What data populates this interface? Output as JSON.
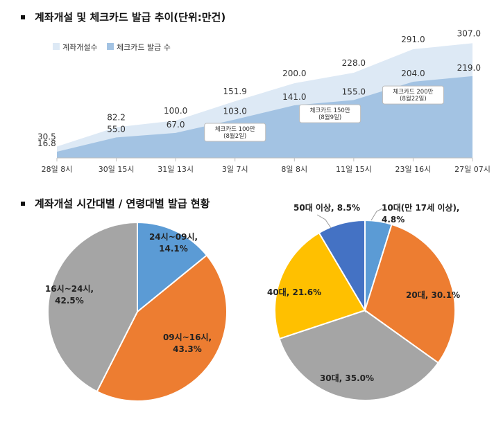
{
  "titles": {
    "top": "계좌개설 및 체크카드 발급 추이(단위:만건)",
    "bottom": "계좌개설 시간대별 / 연령대별 발급 현황"
  },
  "colors": {
    "account_area": "#dde9f5",
    "card_area": "#a3c3e3",
    "axis": "#bfbfbf",
    "time_pie": [
      "#5b9bd5",
      "#ed7d31",
      "#a5a5a5"
    ],
    "age_pie": [
      "#5b9bd5",
      "#ed7d31",
      "#a5a5a5",
      "#ffc000",
      "#4472c4"
    ]
  },
  "chart_data": [
    {
      "type": "area",
      "title": "계좌개설 및 체크카드 발급 추이(단위:만건)",
      "categories": [
        "28일 8시",
        "30일 15시",
        "31일 13시",
        "3일 7시",
        "8일 8시",
        "11일 15시",
        "23일 16시",
        "27일 07시"
      ],
      "series": [
        {
          "name": "계좌개설수",
          "values": [
            30.5,
            82.2,
            100.0,
            151.9,
            200.0,
            228.0,
            291.0,
            307.0
          ],
          "labels": [
            "30.5",
            "82.2",
            "100.0",
            "151.9",
            "200.0",
            "228.0",
            "291.0",
            "307.0"
          ]
        },
        {
          "name": "체크카드 발급 수",
          "values": [
            16.8,
            55.0,
            67.0,
            103.0,
            141.0,
            155.0,
            204.0,
            219.0
          ],
          "labels": [
            "16.8",
            "55.0",
            "67.0",
            "103.0",
            "141.0",
            "155.0",
            "204.0",
            "219.0"
          ]
        }
      ],
      "ylim": [
        0,
        330
      ],
      "grid": false,
      "legend": "top-left",
      "annotations": [
        {
          "lines": [
            "체크카드 100만",
            "(8월2일)"
          ],
          "x_index": 3,
          "value": 100
        },
        {
          "lines": [
            "체크카드 150만",
            "(8월9일)"
          ],
          "x_index": 4.6,
          "value": 150
        },
        {
          "lines": [
            "체크카드 200만",
            "(8월22일)"
          ],
          "x_index": 6,
          "value": 200
        }
      ]
    },
    {
      "type": "pie",
      "slices": [
        {
          "lines": [
            "24시~09시,",
            "14.1%"
          ],
          "value": 14.1
        },
        {
          "lines": [
            "09시~16시,",
            "43.3%"
          ],
          "value": 43.3
        },
        {
          "lines": [
            "16시~24시,",
            "42.5%"
          ],
          "value": 42.5
        }
      ]
    },
    {
      "type": "pie",
      "slices": [
        {
          "lines": [
            "10대(만 17세 이상),",
            "4.8%"
          ],
          "value": 4.8
        },
        {
          "lines": [
            "20대, 30.1%"
          ],
          "value": 30.1
        },
        {
          "lines": [
            "30대, 35.0%"
          ],
          "value": 35.0
        },
        {
          "lines": [
            "40대, 21.6%"
          ],
          "value": 21.6
        },
        {
          "lines": [
            "50대 이상, 8.5%"
          ],
          "value": 8.5
        }
      ]
    }
  ]
}
